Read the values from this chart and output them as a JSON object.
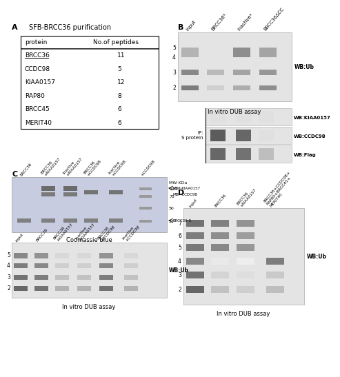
{
  "panel_A": {
    "title": "SFB-BRCC36 purification",
    "proteins": [
      "BRCC36",
      "CCDC98",
      "KIAA0157",
      "RAP80",
      "BRCC45",
      "MERIT40"
    ],
    "peptides": [
      11,
      5,
      12,
      8,
      6,
      6
    ]
  },
  "panel_B": {
    "col_labels": [
      "input",
      "BRCC36*",
      "inactive*",
      "BRCC36ΔCC"
    ],
    "wb_labels_right": [
      "WB:Flag",
      "WB:CCDC98",
      "WB:KIAA0157"
    ]
  },
  "panel_C": {
    "col_labels_top": [
      "BRCC36",
      "BRCC36\n+KIAA0157",
      "Inactive\n+KIAA0157",
      "BRCC36\n+CCDC98",
      "Inactive\n+CCDC98"
    ],
    "col_labels_bot": [
      "input",
      "BRCC36",
      "BRCC36\n+KIAA0157",
      "Inactive\n+KIAA0157",
      "BRCC36\n+CCDC98",
      "Inactive\n+CCDC98"
    ]
  },
  "panel_D": {
    "col_labels": [
      "input",
      "BRCC36",
      "BRCC36\n+KIAA0157",
      "BRCC36+CCDC98+\nRAP80+BRCC45+\nMERIT40"
    ]
  },
  "bg_color": "#ffffff"
}
